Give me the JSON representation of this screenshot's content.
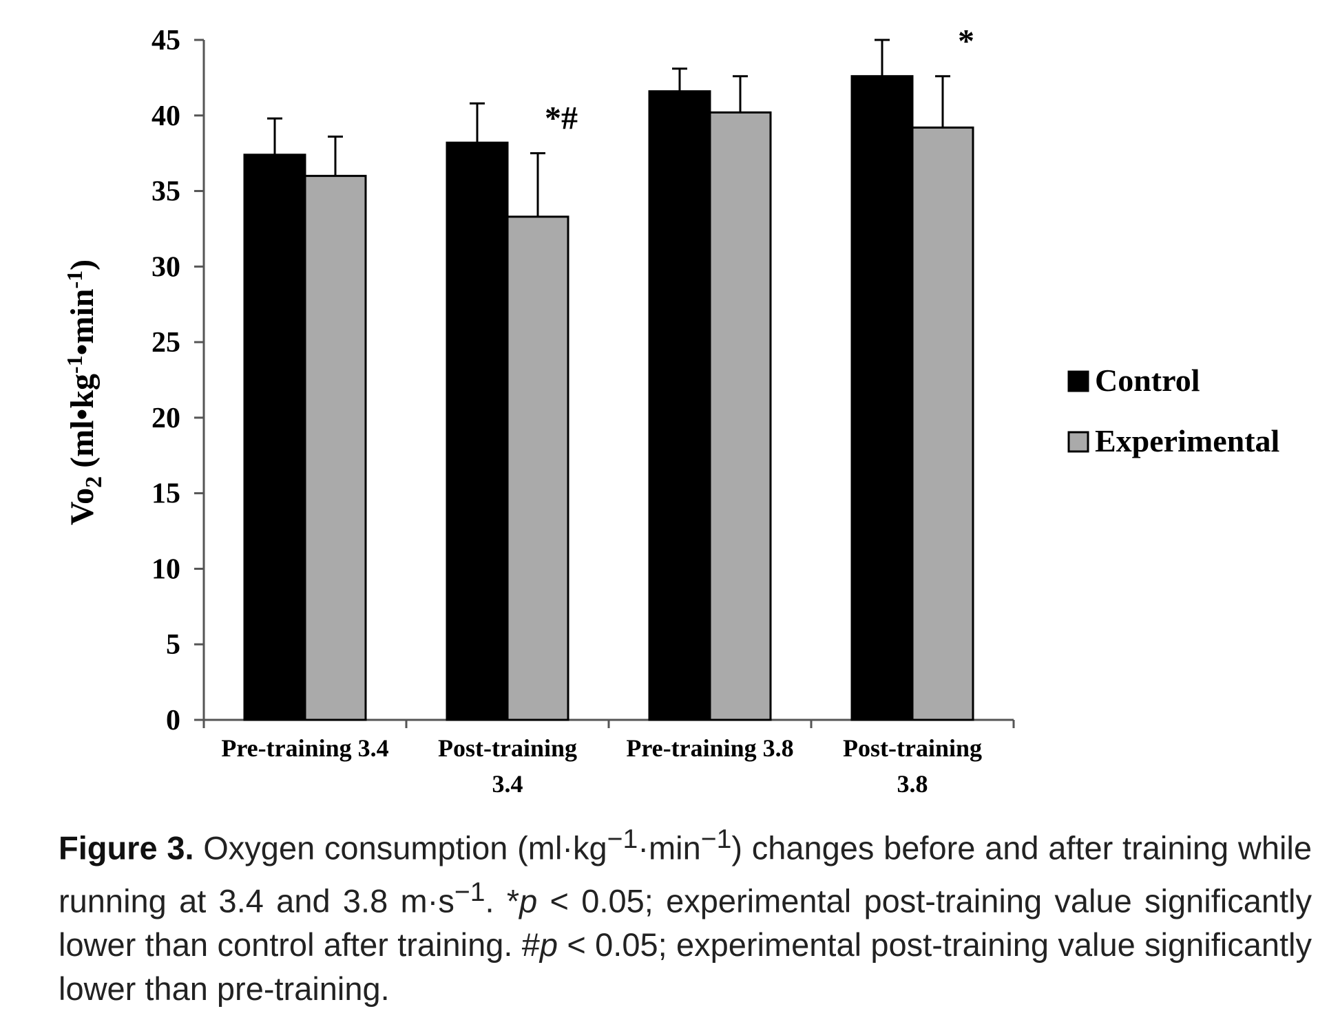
{
  "chart_data": {
    "type": "bar",
    "categories": [
      [
        "Pre-training 3.4"
      ],
      [
        "Post-training",
        "3.4"
      ],
      [
        "Pre-training 3.8"
      ],
      [
        "Post-training",
        "3.8"
      ]
    ],
    "series": [
      {
        "name": "Control",
        "color": "#000000",
        "values": [
          37.4,
          38.2,
          41.6,
          42.6
        ],
        "errors": [
          2.4,
          2.6,
          1.5,
          2.4
        ]
      },
      {
        "name": "Experimental",
        "color": "#aaaaaa",
        "values": [
          36.0,
          33.3,
          40.2,
          39.2
        ],
        "errors": [
          2.6,
          4.2,
          2.4,
          3.4
        ]
      }
    ],
    "ylabel": "Vo2 (ml•kg-1•min-1)",
    "ylim": [
      0,
      45
    ],
    "yticks": [
      0,
      5,
      10,
      15,
      20,
      25,
      30,
      35,
      40,
      45
    ],
    "annotations": [
      {
        "category": 1,
        "series": 1,
        "text": "*#"
      },
      {
        "category": 3,
        "series": 1,
        "text": "*"
      }
    ],
    "legend_position": "right",
    "grid": false
  },
  "caption": {
    "label": "Figure 3.",
    "text_parts": [
      " Oxygen consumption (ml·kg",
      "−1",
      "·min",
      "−1",
      ") changes before and after training while running at 3.4 and 3.8 m·s",
      "−1",
      ". *",
      "p",
      " < 0.05; experimental post-training value significantly lower than control after training. #",
      "p",
      " < 0.05; experimental post-training value significantly lower than pre-training."
    ]
  }
}
